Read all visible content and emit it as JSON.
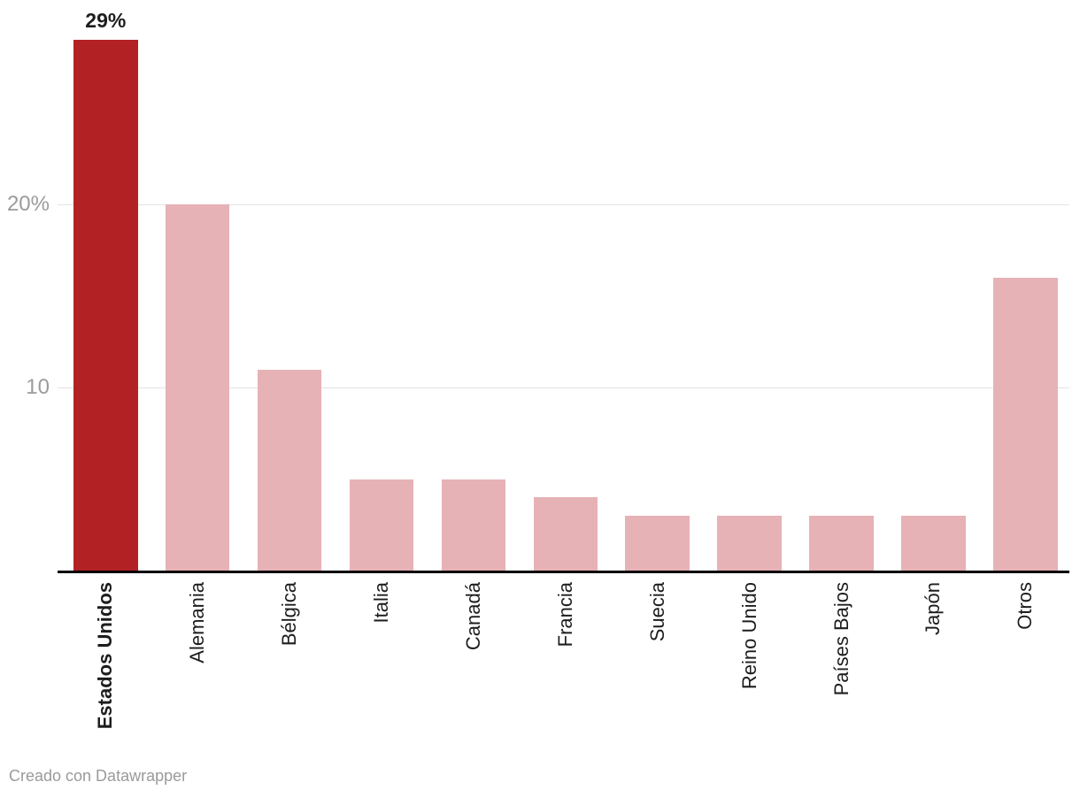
{
  "chart_data": {
    "type": "bar",
    "categories": [
      "Estados Unidos",
      "Alemania",
      "Bélgica",
      "Italia",
      "Canadá",
      "Francia",
      "Suecia",
      "Reino Unido",
      "Países Bajos",
      "Japón",
      "Otros"
    ],
    "values": [
      29,
      20,
      11,
      5,
      5,
      4,
      3,
      3,
      3,
      3,
      16
    ],
    "unit": "%",
    "title": "",
    "xlabel": "",
    "ylabel": "",
    "ylim": [
      0,
      30
    ],
    "grid": "horizontal",
    "legend": "none",
    "highlight_category": "Estados Unidos",
    "value_label": {
      "category": "Estados Unidos",
      "text": "29%"
    },
    "yticks": [
      {
        "value": 10,
        "label": "10"
      },
      {
        "value": 20,
        "label": "20%"
      }
    ],
    "colors": {
      "highlight_bar": "#b22225",
      "bar": "#e6b2b6",
      "gridline": "#e3e3e3",
      "axis": "#000000",
      "tick_text": "#9b9b9b",
      "label_text": "#1d1d1d",
      "footer_text": "#9a9a9a"
    }
  },
  "footer": {
    "credit": "Creado con Datawrapper"
  }
}
